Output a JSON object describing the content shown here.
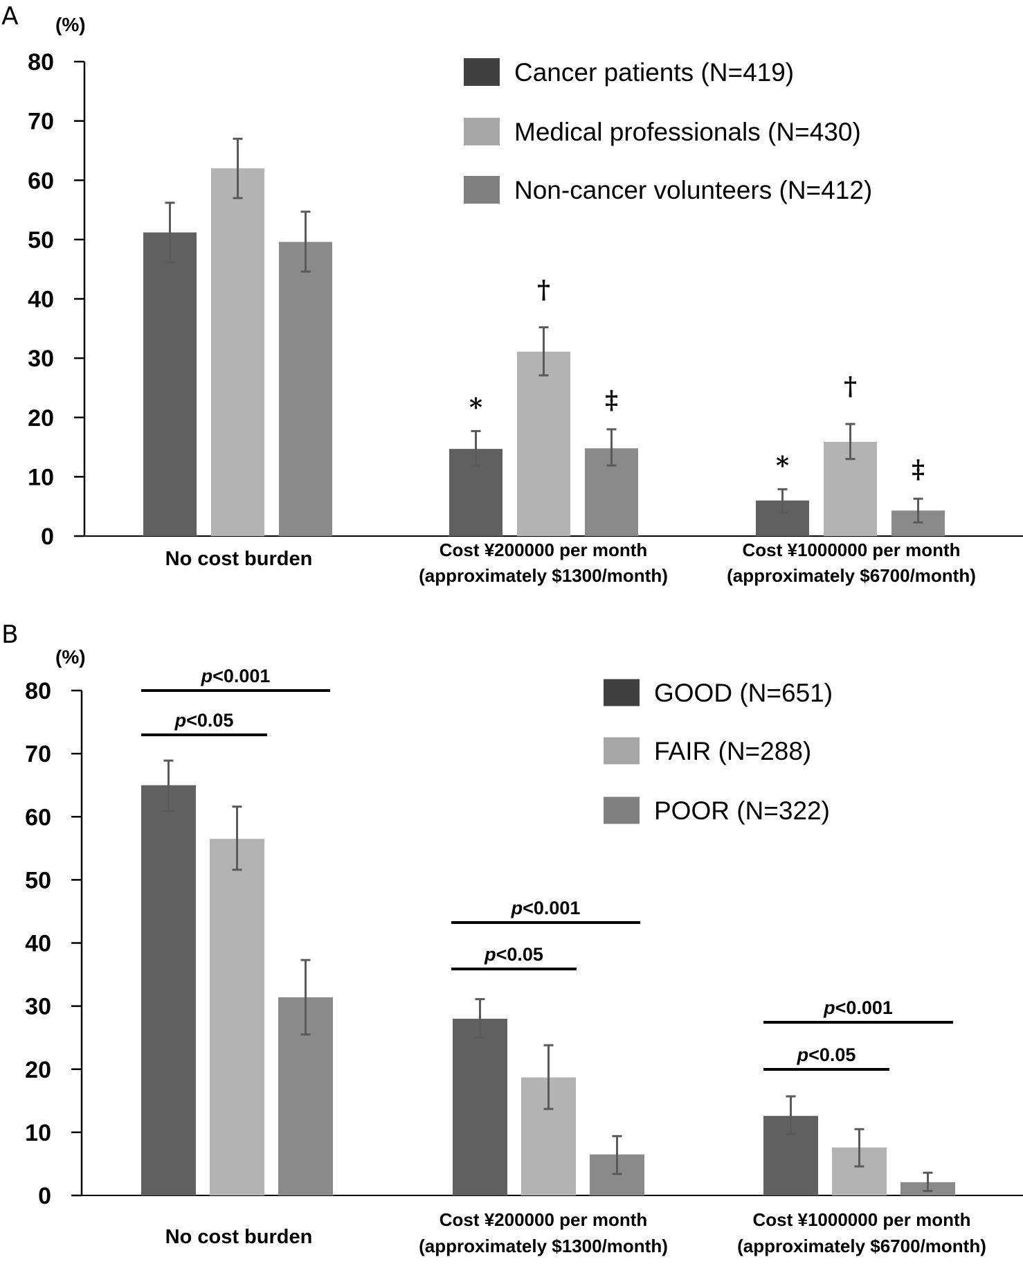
{
  "colors": {
    "series_dark": "#606060",
    "series_light": "#b3b3b3",
    "series_mid": "#8a8a8a",
    "legend_dark": "#404040",
    "legend_light": "#a6a6a6",
    "legend_mid": "#808080",
    "error_bar": "#5a5a5a",
    "axis": "#000000"
  },
  "chart_data": [
    {
      "panel": "A",
      "type": "bar",
      "title": "",
      "xlabel": "",
      "ylabel": "(%)",
      "ylim": [
        0,
        80
      ],
      "yticks": [
        0,
        10,
        20,
        30,
        40,
        50,
        60,
        70,
        80
      ],
      "grid": false,
      "legend_position": "top-right",
      "categories": [
        [
          "No cost burden"
        ],
        [
          "Cost ¥200000 per month",
          "(approximately $1300/month)"
        ],
        [
          "Cost ¥1000000 per month",
          "(approximately $6700/month)"
        ]
      ],
      "series": [
        {
          "name": "Cancer patients (N=419)",
          "values": [
            51.2,
            14.7,
            6.0
          ],
          "error_low": [
            46.2,
            11.8,
            4.0
          ],
          "error_high": [
            56.2,
            17.7,
            7.9
          ],
          "markers": [
            "",
            "*",
            "*"
          ]
        },
        {
          "name": "Medical professionals (N=430)",
          "values": [
            62.0,
            31.1,
            15.9
          ],
          "error_low": [
            57.0,
            27.1,
            13.0
          ],
          "error_high": [
            67.0,
            35.2,
            18.9
          ],
          "markers": [
            "",
            "†",
            "†"
          ]
        },
        {
          "name": "Non-cancer volunteers (N=412)",
          "values": [
            49.6,
            14.8,
            4.3
          ],
          "error_low": [
            44.6,
            11.9,
            2.3
          ],
          "error_high": [
            54.7,
            18.0,
            6.3
          ],
          "markers": [
            "",
            "‡",
            "‡"
          ]
        }
      ],
      "annotations": []
    },
    {
      "panel": "B",
      "type": "bar",
      "title": "",
      "xlabel": "",
      "ylabel": "(%)",
      "ylim": [
        0,
        80
      ],
      "yticks": [
        0,
        10,
        20,
        30,
        40,
        50,
        60,
        70,
        80
      ],
      "grid": false,
      "legend_position": "top-right",
      "categories": [
        [
          "No cost burden"
        ],
        [
          "Cost ¥200000 per month",
          "(approximately $1300/month)"
        ],
        [
          "Cost ¥1000000 per month",
          "(approximately $6700/month)"
        ]
      ],
      "series": [
        {
          "name": "GOOD (N=651)",
          "values": [
            65.0,
            28.0,
            12.6
          ],
          "error_low": [
            60.9,
            25.0,
            9.7
          ],
          "error_high": [
            68.9,
            31.1,
            15.7
          ],
          "markers": [
            "",
            "",
            ""
          ]
        },
        {
          "name": "FAIR (N=288)",
          "values": [
            56.5,
            18.7,
            7.6
          ],
          "error_low": [
            51.6,
            13.7,
            4.6
          ],
          "error_high": [
            61.6,
            23.8,
            10.5
          ],
          "markers": [
            "",
            "",
            ""
          ]
        },
        {
          "name": "POOR (N=322)",
          "values": [
            31.4,
            6.5,
            2.1
          ],
          "error_low": [
            25.5,
            3.4,
            0.7
          ],
          "error_high": [
            37.3,
            9.4,
            3.6
          ],
          "markers": [
            "",
            "",
            ""
          ]
        }
      ],
      "annotations": [
        {
          "group": 0,
          "from_series": 0,
          "to_series": 2,
          "p_symbol": "p",
          "text": "<0.001"
        },
        {
          "group": 0,
          "from_series": 0,
          "to_series": 1,
          "p_symbol": "p",
          "text": "<0.05"
        },
        {
          "group": 1,
          "from_series": 0,
          "to_series": 2,
          "p_symbol": "p",
          "text": "<0.001"
        },
        {
          "group": 1,
          "from_series": 0,
          "to_series": 1,
          "p_symbol": "p",
          "text": "<0.05"
        },
        {
          "group": 2,
          "from_series": 0,
          "to_series": 2,
          "p_symbol": "p",
          "text": "<0.001"
        },
        {
          "group": 2,
          "from_series": 0,
          "to_series": 1,
          "p_symbol": "p",
          "text": "<0.05"
        }
      ]
    }
  ]
}
